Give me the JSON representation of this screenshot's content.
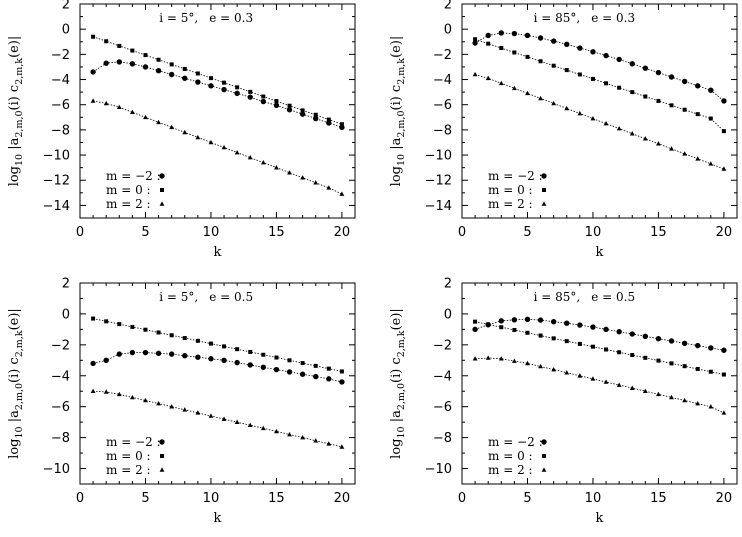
{
  "chart_data": [
    {
      "type": "scatter",
      "title": "",
      "annotation_i": "i = 5°,",
      "annotation_e": "e = 0.3",
      "xlabel": "k",
      "ylabel_main": "log",
      "ylabel_sub10": "10",
      "ylabel_mid": "|a",
      "ylabel_sub_a": "2,m,0",
      "ylabel_mid2": "(i) c",
      "ylabel_sub_c": "2,m,k",
      "ylabel_end": "(e)|",
      "xlim": [
        0,
        21
      ],
      "ylim": [
        -15,
        2
      ],
      "xticks": [
        0,
        5,
        10,
        15,
        20
      ],
      "yticks": [
        2,
        0,
        -2,
        -4,
        -6,
        -8,
        -10,
        -12,
        -14
      ],
      "legend": [
        {
          "label": "m = −2 :",
          "marker": "circle"
        },
        {
          "label": "m =  0 :",
          "marker": "square"
        },
        {
          "label": "m =  2 :",
          "marker": "triangle"
        }
      ],
      "x": [
        1,
        2,
        3,
        4,
        5,
        6,
        7,
        8,
        9,
        10,
        11,
        12,
        13,
        14,
        15,
        16,
        17,
        18,
        19,
        20
      ],
      "series": [
        {
          "name": "m = −2",
          "marker": "circle",
          "values": [
            -3.4,
            -2.7,
            -2.6,
            -2.75,
            -3.0,
            -3.3,
            -3.6,
            -3.9,
            -4.2,
            -4.5,
            -4.8,
            -5.1,
            -5.4,
            -5.75,
            -6.05,
            -6.4,
            -6.75,
            -7.1,
            -7.45,
            -7.8
          ]
        },
        {
          "name": "m = 0",
          "marker": "square",
          "values": [
            -0.6,
            -0.96,
            -1.33,
            -1.7,
            -2.06,
            -2.43,
            -2.8,
            -3.16,
            -3.52,
            -3.89,
            -4.25,
            -4.62,
            -4.98,
            -5.35,
            -5.71,
            -6.08,
            -6.45,
            -6.8,
            -7.18,
            -7.55
          ]
        },
        {
          "name": "m = 2",
          "marker": "triangle",
          "values": [
            -5.7,
            -5.9,
            -6.2,
            -6.6,
            -7.0,
            -7.4,
            -7.8,
            -8.2,
            -8.6,
            -9.0,
            -9.4,
            -9.8,
            -10.2,
            -10.6,
            -11.0,
            -11.4,
            -11.8,
            -12.2,
            -12.6,
            -13.1
          ]
        }
      ]
    },
    {
      "type": "scatter",
      "title": "",
      "annotation_i": "i = 85°,",
      "annotation_e": "e = 0.3",
      "xlabel": "k",
      "ylabel_main": "log",
      "ylabel_sub10": "10",
      "ylabel_mid": "|a",
      "ylabel_sub_a": "2,m,0",
      "ylabel_mid2": "(i) c",
      "ylabel_sub_c": "2,m,k",
      "ylabel_end": "(e)|",
      "xlim": [
        0,
        21
      ],
      "ylim": [
        -15,
        2
      ],
      "xticks": [
        0,
        5,
        10,
        15,
        20
      ],
      "yticks": [
        2,
        0,
        -2,
        -4,
        -6,
        -8,
        -10,
        -12,
        -14
      ],
      "legend": [
        {
          "label": "m = −2 :",
          "marker": "circle"
        },
        {
          "label": "m =  0 :",
          "marker": "square"
        },
        {
          "label": "m =  2 :",
          "marker": "triangle"
        }
      ],
      "x": [
        1,
        2,
        3,
        4,
        5,
        6,
        7,
        8,
        9,
        10,
        11,
        12,
        13,
        14,
        15,
        16,
        17,
        18,
        19,
        20
      ],
      "series": [
        {
          "name": "m = −2",
          "marker": "circle",
          "values": [
            -1.1,
            -0.5,
            -0.3,
            -0.35,
            -0.5,
            -0.7,
            -0.95,
            -1.2,
            -1.5,
            -1.8,
            -2.1,
            -2.4,
            -2.75,
            -3.1,
            -3.45,
            -3.8,
            -4.15,
            -4.5,
            -4.85,
            -5.7
          ]
        },
        {
          "name": "m = 0",
          "marker": "square",
          "values": [
            -0.8,
            -1.15,
            -1.5,
            -1.85,
            -2.2,
            -2.55,
            -2.9,
            -3.25,
            -3.6,
            -3.95,
            -4.3,
            -4.65,
            -5.0,
            -5.35,
            -5.7,
            -6.05,
            -6.4,
            -6.75,
            -7.1,
            -8.1
          ]
        },
        {
          "name": "m = 2",
          "marker": "triangle",
          "values": [
            -3.6,
            -3.9,
            -4.3,
            -4.7,
            -5.1,
            -5.5,
            -5.9,
            -6.3,
            -6.7,
            -7.1,
            -7.5,
            -7.9,
            -8.3,
            -8.7,
            -9.1,
            -9.5,
            -9.9,
            -10.3,
            -10.7,
            -11.1
          ]
        }
      ]
    },
    {
      "type": "scatter",
      "title": "",
      "annotation_i": "i = 5°,",
      "annotation_e": "e = 0.5",
      "xlabel": "k",
      "ylabel_main": "log",
      "ylabel_sub10": "10",
      "ylabel_mid": "|a",
      "ylabel_sub_a": "2,m,0",
      "ylabel_mid2": "(i) c",
      "ylabel_sub_c": "2,m,k",
      "ylabel_end": "(e)|",
      "xlim": [
        0,
        21
      ],
      "ylim": [
        -11,
        2
      ],
      "xticks": [
        0,
        5,
        10,
        15,
        20
      ],
      "yticks": [
        2,
        0,
        -2,
        -4,
        -6,
        -8,
        -10
      ],
      "legend": [
        {
          "label": "m = −2 :",
          "marker": "circle"
        },
        {
          "label": "m =  0 :",
          "marker": "square"
        },
        {
          "label": "m =  2 :",
          "marker": "triangle"
        }
      ],
      "x": [
        1,
        2,
        3,
        4,
        5,
        6,
        7,
        8,
        9,
        10,
        11,
        12,
        13,
        14,
        15,
        16,
        17,
        18,
        19,
        20
      ],
      "series": [
        {
          "name": "m = −2",
          "marker": "circle",
          "values": [
            -3.2,
            -3.0,
            -2.6,
            -2.5,
            -2.5,
            -2.55,
            -2.6,
            -2.7,
            -2.8,
            -2.9,
            -3.0,
            -3.15,
            -3.3,
            -3.45,
            -3.6,
            -3.75,
            -3.9,
            -4.05,
            -4.2,
            -4.4
          ]
        },
        {
          "name": "m = 0",
          "marker": "square",
          "values": [
            -0.3,
            -0.48,
            -0.66,
            -0.84,
            -1.02,
            -1.2,
            -1.38,
            -1.56,
            -1.74,
            -1.92,
            -2.1,
            -2.28,
            -2.46,
            -2.64,
            -2.82,
            -3.0,
            -3.18,
            -3.36,
            -3.54,
            -3.72
          ]
        },
        {
          "name": "m = 2",
          "marker": "triangle",
          "values": [
            -5.0,
            -5.05,
            -5.2,
            -5.4,
            -5.6,
            -5.8,
            -6.0,
            -6.2,
            -6.4,
            -6.6,
            -6.8,
            -7.0,
            -7.2,
            -7.4,
            -7.6,
            -7.8,
            -8.0,
            -8.2,
            -8.4,
            -8.6
          ]
        }
      ]
    },
    {
      "type": "scatter",
      "title": "",
      "annotation_i": "i = 85°,",
      "annotation_e": "e = 0.5",
      "xlabel": "k",
      "ylabel_main": "log",
      "ylabel_sub10": "10",
      "ylabel_mid": "|a",
      "ylabel_sub_a": "2,m,0",
      "ylabel_mid2": "(i) c",
      "ylabel_sub_c": "2,m,k",
      "ylabel_end": "(e)|",
      "xlim": [
        0,
        21
      ],
      "ylim": [
        -11,
        2
      ],
      "xticks": [
        0,
        5,
        10,
        15,
        20
      ],
      "yticks": [
        2,
        0,
        -2,
        -4,
        -6,
        -8,
        -10
      ],
      "legend": [
        {
          "label": "m = −2 :",
          "marker": "circle"
        },
        {
          "label": "m =  0 :",
          "marker": "square"
        },
        {
          "label": "m =  2 :",
          "marker": "triangle"
        }
      ],
      "x": [
        1,
        2,
        3,
        4,
        5,
        6,
        7,
        8,
        9,
        10,
        11,
        12,
        13,
        14,
        15,
        16,
        17,
        18,
        19,
        20
      ],
      "series": [
        {
          "name": "m = −2",
          "marker": "circle",
          "values": [
            -1.0,
            -0.7,
            -0.45,
            -0.38,
            -0.35,
            -0.4,
            -0.5,
            -0.6,
            -0.72,
            -0.85,
            -1.0,
            -1.15,
            -1.3,
            -1.45,
            -1.6,
            -1.75,
            -1.9,
            -2.05,
            -2.2,
            -2.35
          ]
        },
        {
          "name": "m = 0",
          "marker": "square",
          "values": [
            -0.5,
            -0.68,
            -0.86,
            -1.04,
            -1.22,
            -1.4,
            -1.58,
            -1.76,
            -1.94,
            -2.12,
            -2.3,
            -2.48,
            -2.66,
            -2.84,
            -3.02,
            -3.2,
            -3.38,
            -3.56,
            -3.74,
            -3.92
          ]
        },
        {
          "name": "m = 2",
          "marker": "triangle",
          "values": [
            -2.9,
            -2.85,
            -2.9,
            -3.05,
            -3.2,
            -3.4,
            -3.6,
            -3.8,
            -4.0,
            -4.2,
            -4.4,
            -4.6,
            -4.8,
            -5.0,
            -5.2,
            -5.4,
            -5.6,
            -5.8,
            -6.0,
            -6.4
          ]
        }
      ]
    }
  ]
}
